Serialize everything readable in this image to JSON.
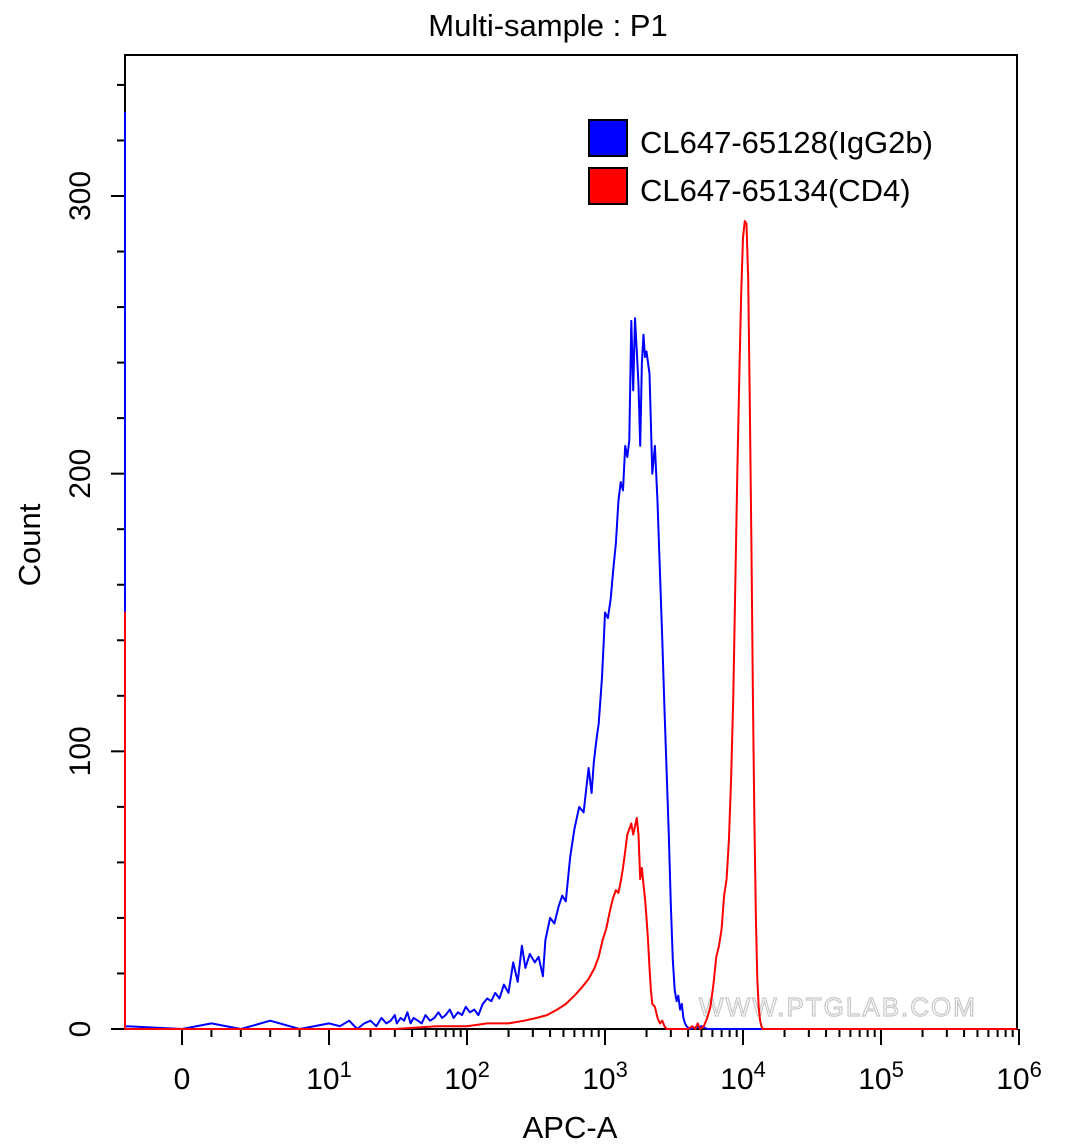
{
  "chart_data": {
    "type": "histogram",
    "title": "Multi-sample : P1",
    "xlabel": "APC-A",
    "ylabel": "Count",
    "x_scale": "biexponential",
    "xlim": [
      -40,
      1000000
    ],
    "ylim": [
      0,
      340
    ],
    "x_tick_labels": [
      {
        "base": "0",
        "exp": ""
      },
      {
        "base": "10",
        "exp": "1"
      },
      {
        "base": "10",
        "exp": "2"
      },
      {
        "base": "10",
        "exp": "3"
      },
      {
        "base": "10",
        "exp": "4"
      },
      {
        "base": "10",
        "exp": "5"
      },
      {
        "base": "10",
        "exp": "6"
      }
    ],
    "y_ticks": [
      0,
      100,
      200,
      300
    ],
    "y_tick_labels": [
      "0",
      "100",
      "200",
      "300"
    ],
    "legend": {
      "position": "top-right",
      "entries": [
        {
          "label": "CL647-65128(IgG2b)",
          "color": "#0000ff"
        },
        {
          "label": "CL647-65134(CD4)",
          "color": "#ff0000"
        }
      ]
    },
    "watermark": "WWW.PTGLAB.COM",
    "series": [
      {
        "name": "CL647-65128(IgG2b)",
        "color": "#0000ff",
        "points": [
          [
            -40,
            0
          ],
          [
            -39.5,
            330
          ],
          [
            -39,
            180
          ],
          [
            -38,
            40
          ],
          [
            -36,
            0
          ],
          [
            -33,
            0
          ],
          [
            -31,
            6
          ],
          [
            -29,
            0
          ],
          [
            -20,
            0
          ],
          [
            -10,
            1
          ],
          [
            0,
            0
          ],
          [
            2,
            2
          ],
          [
            4,
            0
          ],
          [
            6,
            3
          ],
          [
            8,
            0
          ],
          [
            10,
            2
          ],
          [
            12,
            1
          ],
          [
            14,
            3
          ],
          [
            16,
            0
          ],
          [
            18,
            2
          ],
          [
            20,
            3
          ],
          [
            22,
            1
          ],
          [
            24,
            4
          ],
          [
            26,
            2
          ],
          [
            28,
            3
          ],
          [
            30,
            5
          ],
          [
            31,
            2
          ],
          [
            33,
            4
          ],
          [
            35,
            3
          ],
          [
            37,
            6
          ],
          [
            39,
            2
          ],
          [
            41,
            4
          ],
          [
            44,
            3
          ],
          [
            47,
            2
          ],
          [
            50,
            5
          ],
          [
            54,
            3
          ],
          [
            58,
            4
          ],
          [
            62,
            6
          ],
          [
            66,
            4
          ],
          [
            70,
            5
          ],
          [
            75,
            7
          ],
          [
            80,
            4
          ],
          [
            86,
            6
          ],
          [
            92,
            5
          ],
          [
            98,
            8
          ],
          [
            105,
            6
          ],
          [
            113,
            7
          ],
          [
            121,
            5
          ],
          [
            130,
            9
          ],
          [
            140,
            11
          ],
          [
            150,
            10
          ],
          [
            160,
            13
          ],
          [
            172,
            11
          ],
          [
            185,
            16
          ],
          [
            200,
            13
          ],
          [
            216,
            24
          ],
          [
            233,
            17
          ],
          [
            250,
            30
          ],
          [
            265,
            22
          ],
          [
            285,
            27
          ],
          [
            310,
            24
          ],
          [
            330,
            26
          ],
          [
            355,
            19
          ],
          [
            370,
            32
          ],
          [
            400,
            40
          ],
          [
            430,
            38
          ],
          [
            460,
            44
          ],
          [
            490,
            48
          ],
          [
            520,
            46
          ],
          [
            560,
            62
          ],
          [
            600,
            72
          ],
          [
            650,
            80
          ],
          [
            700,
            78
          ],
          [
            760,
            94
          ],
          [
            800,
            85
          ],
          [
            830,
            96
          ],
          [
            870,
            105
          ],
          [
            900,
            110
          ],
          [
            950,
            126
          ],
          [
            980,
            140
          ],
          [
            1000,
            150
          ],
          [
            1050,
            148
          ],
          [
            1100,
            155
          ],
          [
            1150,
            166
          ],
          [
            1200,
            175
          ],
          [
            1250,
            190
          ],
          [
            1300,
            197
          ],
          [
            1350,
            194
          ],
          [
            1400,
            210
          ],
          [
            1450,
            206
          ],
          [
            1500,
            212
          ],
          [
            1550,
            255
          ],
          [
            1600,
            230
          ],
          [
            1650,
            256
          ],
          [
            1700,
            244
          ],
          [
            1750,
            232
          ],
          [
            1800,
            210
          ],
          [
            1850,
            240
          ],
          [
            1900,
            250
          ],
          [
            1950,
            242
          ],
          [
            2000,
            244
          ],
          [
            2100,
            236
          ],
          [
            2200,
            200
          ],
          [
            2300,
            210
          ],
          [
            2400,
            190
          ],
          [
            2500,
            165
          ],
          [
            2600,
            140
          ],
          [
            2700,
            115
          ],
          [
            2800,
            92
          ],
          [
            2900,
            70
          ],
          [
            3000,
            45
          ],
          [
            3100,
            25
          ],
          [
            3200,
            14
          ],
          [
            3300,
            10
          ],
          [
            3400,
            12
          ],
          [
            3500,
            7
          ],
          [
            3600,
            9
          ],
          [
            3700,
            4
          ],
          [
            3800,
            2
          ],
          [
            3900,
            1
          ],
          [
            4100,
            0
          ],
          [
            5000,
            1
          ],
          [
            5500,
            0
          ],
          [
            8000,
            0
          ],
          [
            1000000,
            0
          ]
        ]
      },
      {
        "name": "CL647-65134(CD4)",
        "color": "#ff0000",
        "points": [
          [
            -40,
            0
          ],
          [
            -39.5,
            150
          ],
          [
            -39,
            60
          ],
          [
            -38,
            0
          ],
          [
            -30,
            0
          ],
          [
            10,
            0
          ],
          [
            30,
            0
          ],
          [
            60,
            1
          ],
          [
            100,
            1
          ],
          [
            140,
            2
          ],
          [
            200,
            2
          ],
          [
            260,
            3
          ],
          [
            320,
            4
          ],
          [
            380,
            5
          ],
          [
            450,
            7
          ],
          [
            520,
            9
          ],
          [
            600,
            12
          ],
          [
            680,
            15
          ],
          [
            760,
            18
          ],
          [
            840,
            22
          ],
          [
            900,
            26
          ],
          [
            960,
            32
          ],
          [
            1020,
            36
          ],
          [
            1080,
            42
          ],
          [
            1140,
            47
          ],
          [
            1200,
            50
          ],
          [
            1250,
            49
          ],
          [
            1300,
            53
          ],
          [
            1350,
            58
          ],
          [
            1400,
            64
          ],
          [
            1450,
            70
          ],
          [
            1500,
            72
          ],
          [
            1550,
            74
          ],
          [
            1600,
            70
          ],
          [
            1650,
            73
          ],
          [
            1700,
            76
          ],
          [
            1750,
            70
          ],
          [
            1800,
            54
          ],
          [
            1850,
            58
          ],
          [
            1900,
            52
          ],
          [
            1950,
            47
          ],
          [
            2000,
            40
          ],
          [
            2050,
            32
          ],
          [
            2100,
            22
          ],
          [
            2150,
            14
          ],
          [
            2200,
            9
          ],
          [
            2300,
            8
          ],
          [
            2400,
            4
          ],
          [
            2500,
            2
          ],
          [
            2600,
            3
          ],
          [
            2700,
            1
          ],
          [
            2800,
            0
          ],
          [
            4000,
            0
          ],
          [
            4300,
            1
          ],
          [
            4500,
            0
          ],
          [
            4700,
            2
          ],
          [
            4900,
            0
          ],
          [
            5200,
            1
          ],
          [
            5500,
            4
          ],
          [
            5800,
            8
          ],
          [
            6100,
            16
          ],
          [
            6400,
            26
          ],
          [
            6700,
            30
          ],
          [
            7000,
            36
          ],
          [
            7300,
            48
          ],
          [
            7600,
            54
          ],
          [
            7900,
            68
          ],
          [
            8200,
            90
          ],
          [
            8500,
            120
          ],
          [
            8800,
            160
          ],
          [
            9100,
            200
          ],
          [
            9400,
            235
          ],
          [
            9700,
            265
          ],
          [
            10000,
            285
          ],
          [
            10300,
            291
          ],
          [
            10600,
            290
          ],
          [
            10900,
            270
          ],
          [
            11200,
            225
          ],
          [
            11500,
            175
          ],
          [
            11800,
            120
          ],
          [
            12100,
            75
          ],
          [
            12400,
            40
          ],
          [
            12700,
            18
          ],
          [
            13000,
            8
          ],
          [
            13300,
            3
          ],
          [
            13600,
            1
          ],
          [
            13900,
            0
          ],
          [
            1000000,
            0
          ]
        ]
      }
    ]
  }
}
